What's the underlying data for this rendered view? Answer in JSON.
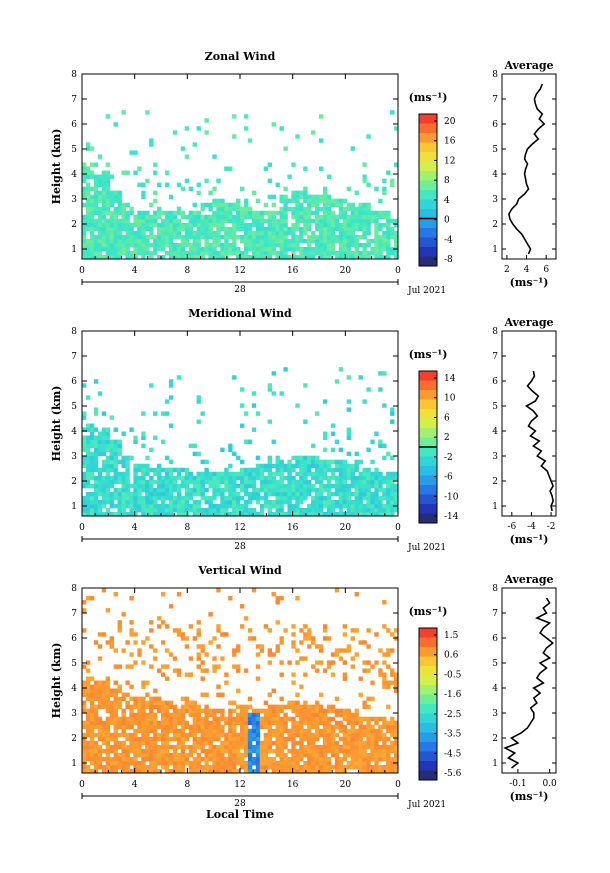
{
  "chart_data": [
    {
      "type": "heatmap",
      "title": "Zonal Wind",
      "ylabel": "Height (km)",
      "xticks": [
        "0",
        "4",
        "8",
        "12",
        "16",
        "20",
        "0"
      ],
      "yticks": [
        "1",
        "2",
        "3",
        "4",
        "5",
        "6",
        "7",
        "8"
      ],
      "xlim": [
        0,
        24
      ],
      "ylim": [
        0.6,
        8.0
      ],
      "date_label": "28",
      "date_suffix": "Jul 2021",
      "colorbar": {
        "unit": "(ms⁻¹)",
        "ticks": [
          "20",
          "16",
          "12",
          "8",
          "4",
          "0",
          "-4",
          "-8"
        ],
        "range": [
          -10,
          22
        ],
        "contour": 0
      },
      "field": {
        "coverage_top": [
          4.5,
          4.0,
          3.4,
          2.9,
          2.6,
          2.5,
          2.5,
          2.6,
          2.6,
          2.8,
          3.0,
          2.9,
          2.7,
          2.5,
          2.6,
          3.2,
          3.4,
          3.2,
          3.1,
          3.0,
          2.9,
          2.8,
          2.6,
          2.4,
          2.3
        ],
        "low_value": 4,
        "high_value": 7
      },
      "profile": {
        "title": "Average",
        "xlabel": "(ms⁻¹)",
        "xticks": [
          "2",
          "4",
          "6"
        ],
        "xlim": [
          1.5,
          7.0
        ],
        "height": [
          0.8,
          1.0,
          1.2,
          1.4,
          1.6,
          1.8,
          2.0,
          2.2,
          2.4,
          2.6,
          2.8,
          3.0,
          3.2,
          3.4,
          3.6,
          3.8,
          4.0,
          4.2,
          4.4,
          4.6,
          4.8,
          5.0,
          5.2,
          5.4,
          5.6,
          5.8,
          6.0,
          6.2,
          6.4,
          6.6,
          6.8,
          7.0,
          7.2,
          7.4,
          7.6
        ],
        "value": [
          4.2,
          4.4,
          4.1,
          3.8,
          3.5,
          3.0,
          2.6,
          2.3,
          2.2,
          2.5,
          3.0,
          3.2,
          3.8,
          4.2,
          4.0,
          3.9,
          3.8,
          3.9,
          4.1,
          3.8,
          3.9,
          4.1,
          4.6,
          5.2,
          4.8,
          5.2,
          5.8,
          5.3,
          5.6,
          5.1,
          4.9,
          4.8,
          5.0,
          5.4,
          5.6
        ]
      }
    },
    {
      "type": "heatmap",
      "title": "Meridional Wind",
      "ylabel": "Height (km)",
      "xticks": [
        "0",
        "4",
        "8",
        "12",
        "16",
        "20",
        "0"
      ],
      "yticks": [
        "1",
        "2",
        "3",
        "4",
        "5",
        "6",
        "7",
        "8"
      ],
      "xlim": [
        0,
        24
      ],
      "ylim": [
        0.6,
        8.0
      ],
      "date_label": "28",
      "date_suffix": "Jul 2021",
      "colorbar": {
        "unit": "(ms⁻¹)",
        "ticks": [
          "14",
          "10",
          "6",
          "2",
          "-2",
          "-6",
          "-10",
          "-14"
        ],
        "range": [
          -16,
          16
        ],
        "contour": 0
      },
      "field": {
        "coverage_top": [
          4.3,
          4.2,
          3.6,
          3.0,
          2.7,
          2.6,
          2.5,
          2.5,
          2.4,
          2.3,
          2.4,
          2.4,
          2.5,
          2.6,
          2.8,
          2.9,
          3.0,
          3.0,
          2.9,
          2.8,
          2.7,
          2.5,
          2.4,
          2.3,
          2.2
        ],
        "low_value": -4,
        "high_value": 0
      },
      "profile": {
        "title": "Average",
        "xlabel": "(ms⁻¹)",
        "xticks": [
          "-6",
          "-4",
          "-2"
        ],
        "xlim": [
          -7.0,
          -1.5
        ],
        "height": [
          0.8,
          1.0,
          1.2,
          1.4,
          1.6,
          1.8,
          2.0,
          2.2,
          2.4,
          2.6,
          2.8,
          3.0,
          3.2,
          3.4,
          3.6,
          3.8,
          4.0,
          4.2,
          4.4,
          4.6,
          4.8,
          5.0,
          5.2,
          5.4,
          5.6,
          5.8,
          6.0,
          6.2,
          6.4
        ],
        "value": [
          -1.9,
          -2.0,
          -1.8,
          -1.9,
          -2.1,
          -1.8,
          -2.0,
          -2.2,
          -2.4,
          -3.0,
          -2.6,
          -3.4,
          -3.0,
          -3.8,
          -3.2,
          -4.1,
          -3.6,
          -4.3,
          -4.0,
          -3.4,
          -3.8,
          -4.5,
          -3.6,
          -3.3,
          -3.9,
          -4.4,
          -4.0,
          -3.7,
          -3.8
        ]
      }
    },
    {
      "type": "heatmap",
      "title": "Vertical Wind",
      "ylabel": "Height (km)",
      "xlabel": "Local Time",
      "xticks": [
        "0",
        "4",
        "8",
        "12",
        "16",
        "20",
        "0"
      ],
      "yticks": [
        "1",
        "2",
        "3",
        "4",
        "5",
        "6",
        "7",
        "8"
      ],
      "xlim": [
        0,
        24
      ],
      "ylim": [
        0.6,
        8.0
      ],
      "date_label": "28",
      "date_suffix": "Jul 2021",
      "colorbar": {
        "unit": "(ms⁻¹)",
        "ticks": [
          "1.5",
          "0.6",
          "-0.5",
          "-1.6",
          "-2.5",
          "-3.5",
          "-4.5",
          "-5.6"
        ],
        "range": [
          -6.0,
          2.0
        ],
        "contour": null
      },
      "field": {
        "coverage_top": [
          4.5,
          4.3,
          4.0,
          3.8,
          3.7,
          3.6,
          3.5,
          3.4,
          3.3,
          3.2,
          3.1,
          3.2,
          3.3,
          3.2,
          3.3,
          3.4,
          3.5,
          3.4,
          3.3,
          3.2,
          3.0,
          2.9,
          2.8,
          2.7,
          2.6
        ],
        "low_value": 0.6,
        "high_value": 1.0,
        "updraft": {
          "time": 13.0,
          "value": -4.5
        }
      },
      "profile": {
        "title": "Average",
        "xlabel": "(ms⁻¹)",
        "xticks": [
          "-0.1",
          "0.0"
        ],
        "xlim": [
          -0.15,
          0.02
        ],
        "height": [
          0.8,
          1.0,
          1.2,
          1.4,
          1.6,
          1.8,
          2.0,
          2.2,
          2.4,
          2.6,
          2.8,
          3.0,
          3.2,
          3.4,
          3.6,
          3.8,
          4.0,
          4.2,
          4.4,
          4.6,
          4.8,
          5.0,
          5.2,
          5.4,
          5.6,
          5.8,
          6.0,
          6.2,
          6.4,
          6.6,
          6.8,
          7.0,
          7.2,
          7.4,
          7.6
        ],
        "value": [
          -0.12,
          -0.1,
          -0.13,
          -0.11,
          -0.14,
          -0.1,
          -0.12,
          -0.09,
          -0.07,
          -0.06,
          -0.05,
          -0.05,
          -0.06,
          -0.04,
          -0.05,
          -0.03,
          -0.05,
          -0.02,
          -0.04,
          -0.03,
          -0.01,
          -0.03,
          0.0,
          -0.02,
          -0.01,
          0.01,
          -0.01,
          -0.03,
          -0.02,
          0.0,
          -0.04,
          -0.01,
          -0.02,
          0.0,
          -0.01
        ]
      }
    }
  ]
}
